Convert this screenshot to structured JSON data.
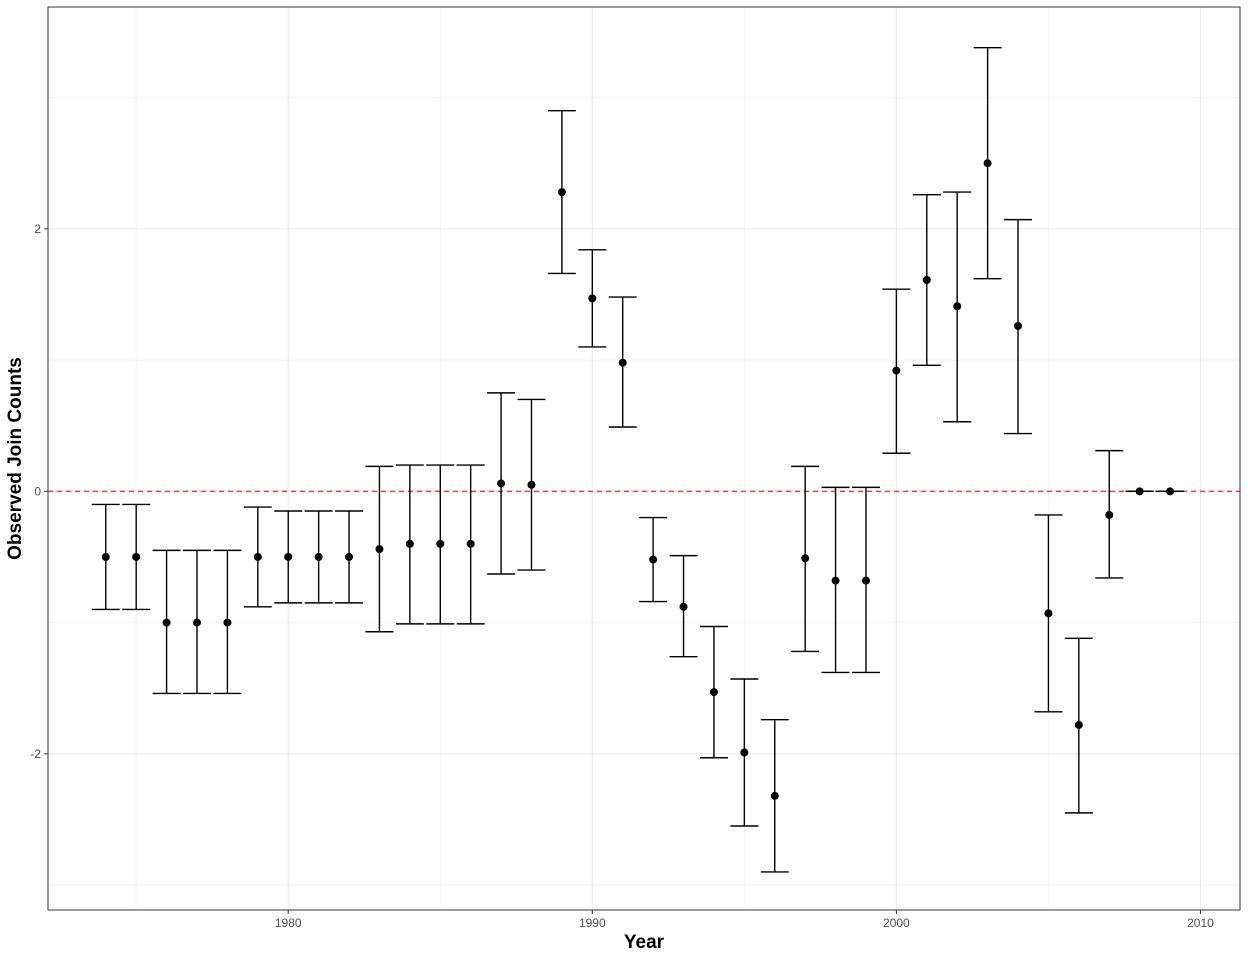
{
  "chart_data": {
    "type": "scatter",
    "title": "",
    "xlabel": "Year",
    "ylabel": "Observed Join Counts",
    "xlim": [
      1972.1,
      2011.3
    ],
    "ylim": [
      -3.19,
      3.69
    ],
    "x_ticks": [
      1980,
      1990,
      2000,
      2010
    ],
    "y_ticks": [
      -2,
      0,
      2
    ],
    "x_tick_labels": [
      "1980",
      "1990",
      "2000",
      "2010"
    ],
    "y_tick_labels": [
      "-2",
      "0",
      "2"
    ],
    "grid": true,
    "reference_line": {
      "y": 0,
      "color": "#e8413a",
      "style": "dashed"
    },
    "error_bar_color": "#000000",
    "point_color": "#000000",
    "series": [
      {
        "x": [
          1974,
          1975,
          1976,
          1977,
          1978,
          1979,
          1980,
          1981,
          1982,
          1983,
          1984,
          1985,
          1986,
          1987,
          1988,
          1989,
          1990,
          1991,
          1992,
          1993,
          1994,
          1995,
          1996,
          1997,
          1998,
          1999,
          2000,
          2001,
          2002,
          2003,
          2004,
          2005,
          2006,
          2007,
          2008,
          2009
        ],
        "y": [
          -0.5,
          -0.5,
          -1.0,
          -1.0,
          -1.0,
          -0.5,
          -0.5,
          -0.5,
          -0.5,
          -0.44,
          -0.4,
          -0.4,
          -0.4,
          0.06,
          0.05,
          2.28,
          1.47,
          0.98,
          -0.52,
          -0.88,
          -1.53,
          -1.99,
          -2.32,
          -0.51,
          -0.68,
          -0.68,
          0.92,
          1.61,
          1.41,
          2.5,
          1.26,
          -0.93,
          -1.78,
          -0.18,
          0.0,
          0.0
        ],
        "lower": [
          -0.9,
          -0.9,
          -1.54,
          -1.54,
          -1.54,
          -0.88,
          -0.85,
          -0.85,
          -0.85,
          -1.07,
          -1.01,
          -1.01,
          -1.01,
          -0.63,
          -0.6,
          1.66,
          1.1,
          0.49,
          -0.84,
          -1.26,
          -2.03,
          -2.55,
          -2.9,
          -1.22,
          -1.38,
          -1.38,
          0.29,
          0.96,
          0.53,
          1.62,
          0.44,
          -1.68,
          -2.45,
          -0.66,
          0.0,
          0.0
        ],
        "upper": [
          -0.1,
          -0.1,
          -0.45,
          -0.45,
          -0.45,
          -0.12,
          -0.15,
          -0.15,
          -0.15,
          0.19,
          0.2,
          0.2,
          0.2,
          0.75,
          0.7,
          2.9,
          1.84,
          1.48,
          -0.2,
          -0.49,
          -1.03,
          -1.43,
          -1.74,
          0.19,
          0.03,
          0.03,
          1.54,
          2.26,
          2.28,
          3.38,
          2.07,
          -0.18,
          -1.12,
          0.31,
          0.0,
          0.0
        ]
      }
    ]
  }
}
